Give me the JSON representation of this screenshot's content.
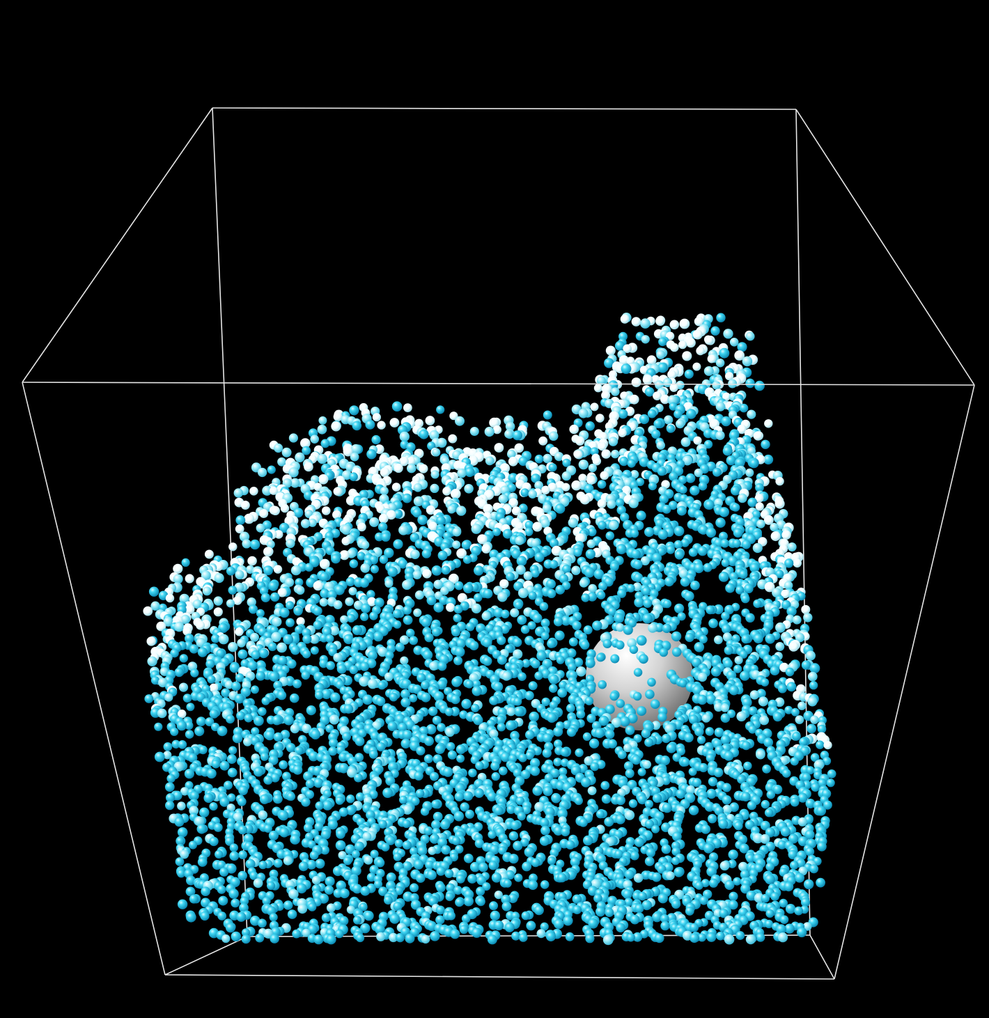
{
  "scene": {
    "background_color": "#000000",
    "container_edge_color": "#e6e6e6",
    "particle_colors": {
      "deep_water": "#1cc7ec",
      "mid_water": "#7fe6f7",
      "foam": "#ffffff"
    },
    "obstacle": {
      "shape": "sphere",
      "color": "#c8c8c8"
    },
    "icons": [
      "container-box-icon",
      "fluid-particle-icon",
      "sphere-obstacle-icon"
    ]
  }
}
